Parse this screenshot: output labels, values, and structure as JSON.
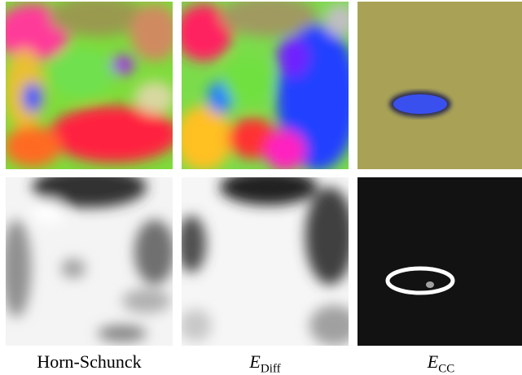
{
  "captions": [
    {
      "text": "Horn-Schunck"
    },
    {
      "main": "E",
      "sub": "Diff"
    },
    {
      "main": "E",
      "sub": "CC"
    }
  ]
}
